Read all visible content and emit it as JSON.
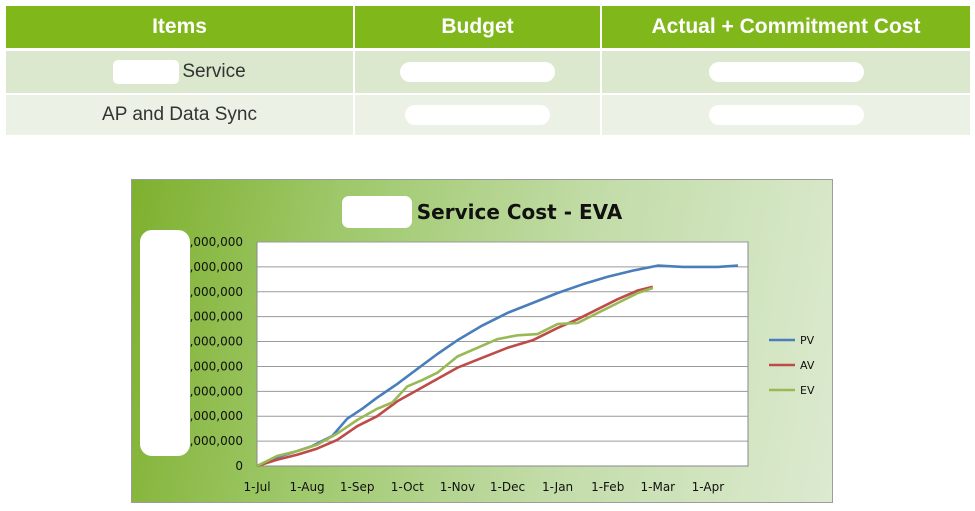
{
  "table": {
    "headers": [
      "Items",
      "Budget",
      "Actual + Commitment Cost"
    ],
    "rows": [
      {
        "item": "Service"
      },
      {
        "item": "AP and Data Sync"
      }
    ]
  },
  "chart_data": {
    "type": "line",
    "title": "Service Cost - EVA",
    "xlabel": "",
    "ylabel": "",
    "x_ticks": [
      "1-Jul",
      "1-Aug",
      "1-Sep",
      "1-Oct",
      "1-Nov",
      "1-Dec",
      "1-Jan",
      "1-Feb",
      "1-Mar",
      "1-Apr"
    ],
    "y_ticks": [
      "0",
      ",000,000",
      ",000,000",
      ",000,000",
      ",000,000",
      ",000,000",
      ",000,000",
      ",000,000",
      ",000,000",
      ",000,000"
    ],
    "ylim": [
      0,
      9
    ],
    "grid": true,
    "legend_position": "right",
    "series": [
      {
        "name": "PV",
        "color": "#4a7ebb",
        "x": [
          0,
          0.4,
          0.8,
          1.1,
          1.5,
          1.8,
          2.1,
          2.4,
          2.8,
          3.2,
          3.6,
          4.0,
          4.5,
          5.0,
          5.5,
          6.0,
          6.5,
          7.0,
          7.5,
          8.0,
          8.5,
          8.8,
          9.2,
          9.6
        ],
        "values": [
          0,
          0.35,
          0.6,
          0.8,
          1.2,
          1.9,
          2.3,
          2.75,
          3.3,
          3.9,
          4.5,
          5.05,
          5.65,
          6.15,
          6.55,
          6.95,
          7.3,
          7.6,
          7.85,
          8.05,
          8.0,
          8.0,
          8.0,
          8.05
        ]
      },
      {
        "name": "AV",
        "color": "#be4b48",
        "x": [
          0,
          0.4,
          0.8,
          1.2,
          1.6,
          2.0,
          2.4,
          2.8,
          3.2,
          3.6,
          4.0,
          4.5,
          5.0,
          5.5,
          6.0,
          6.4,
          6.8,
          7.2,
          7.6,
          7.9
        ],
        "values": [
          0,
          0.25,
          0.45,
          0.7,
          1.05,
          1.6,
          2.0,
          2.6,
          3.05,
          3.5,
          3.95,
          4.35,
          4.75,
          5.05,
          5.55,
          5.9,
          6.3,
          6.7,
          7.05,
          7.2
        ]
      },
      {
        "name": "EV",
        "color": "#98b954",
        "x": [
          0,
          0.4,
          0.8,
          1.2,
          1.6,
          2.0,
          2.4,
          2.7,
          3.0,
          3.3,
          3.6,
          4.0,
          4.4,
          4.8,
          5.2,
          5.6,
          6.0,
          6.4,
          6.8,
          7.2,
          7.6,
          7.9
        ],
        "values": [
          0,
          0.4,
          0.6,
          0.85,
          1.3,
          1.85,
          2.3,
          2.55,
          3.2,
          3.45,
          3.75,
          4.4,
          4.75,
          5.1,
          5.25,
          5.3,
          5.7,
          5.75,
          6.15,
          6.55,
          6.95,
          7.15
        ]
      }
    ]
  }
}
